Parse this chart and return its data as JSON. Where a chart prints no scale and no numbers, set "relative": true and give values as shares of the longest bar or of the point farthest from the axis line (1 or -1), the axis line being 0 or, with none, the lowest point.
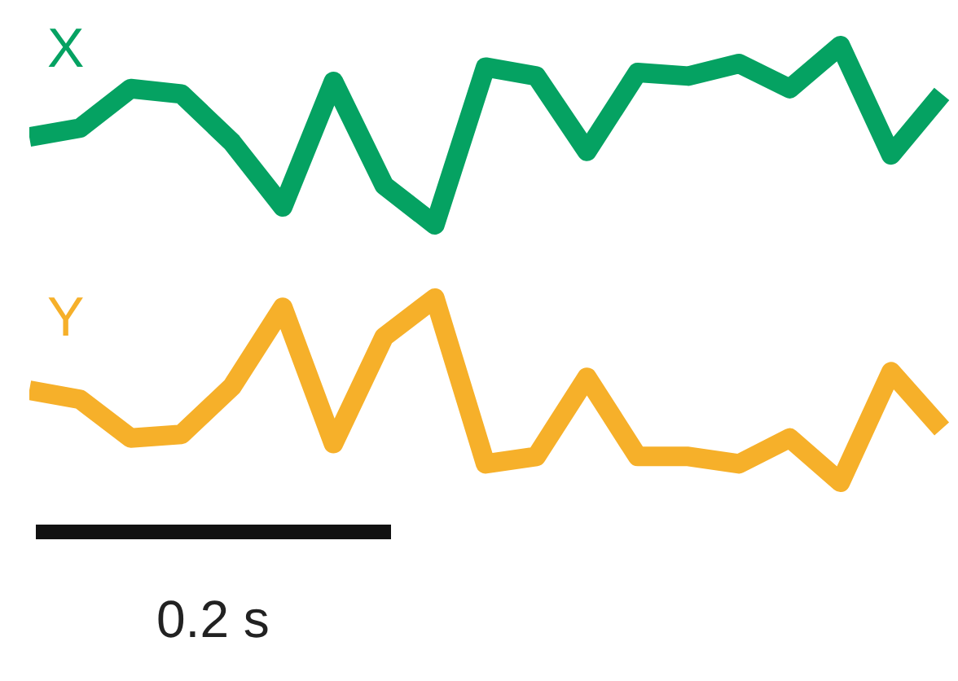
{
  "chart_data": [
    {
      "type": "line",
      "relative": true,
      "legend": false,
      "marker": "none",
      "line_style": "solid",
      "categories": [
        null,
        null,
        null,
        null,
        null,
        null,
        null,
        null,
        null,
        null,
        null,
        null,
        null,
        null,
        null,
        null,
        null,
        null,
        null
      ],
      "series": [
        {
          "name": "X",
          "color": "#05a262",
          "values": [
            0.49,
            0.54,
            0.76,
            0.73,
            0.46,
            0.1,
            0.8,
            0.22,
            0.0,
            0.88,
            0.83,
            0.41,
            0.85,
            0.83,
            0.9,
            0.76,
            1.0,
            0.39,
            0.73
          ]
        }
      ]
    },
    {
      "type": "line",
      "relative": true,
      "legend": false,
      "marker": "none",
      "line_style": "solid",
      "categories": [
        null,
        null,
        null,
        null,
        null,
        null,
        null,
        null,
        null,
        null,
        null,
        null,
        null,
        null,
        null,
        null,
        null,
        null,
        null
      ],
      "annotations": [
        "0.2 s"
      ],
      "series": [
        {
          "name": "Y",
          "color": "#f6b02a",
          "values": [
            0.5,
            0.45,
            0.24,
            0.26,
            0.52,
            0.95,
            0.21,
            0.79,
            1.0,
            0.1,
            0.14,
            0.57,
            0.14,
            0.14,
            0.1,
            0.24,
            0.0,
            0.6,
            0.29
          ]
        }
      ]
    }
  ]
}
